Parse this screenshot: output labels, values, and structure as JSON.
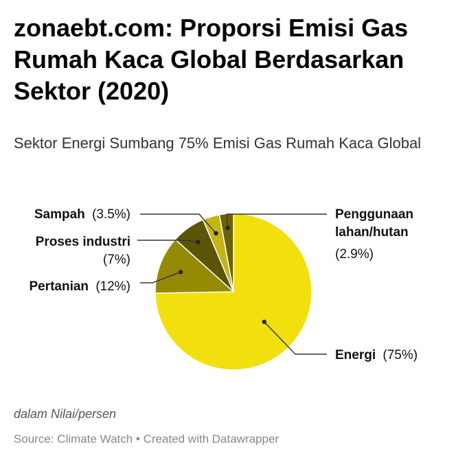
{
  "title": "zonaebt.com: Proporsi Emisi Gas Rumah Kaca Global Berdasarkan Sektor (2020)",
  "subtitle": "Sektor Energi Sumbang 75% Emisi Gas Rumah Kaca Global",
  "note": "dalam Nilai/persen",
  "source": "Source: Climate Watch • Created with Datawrapper",
  "chart_data": {
    "type": "pie",
    "unit": "%",
    "slices": [
      {
        "name": "Energi",
        "value": 75,
        "value_label": "(75%)",
        "color": "#f2df0e"
      },
      {
        "name": "Pertanian",
        "value": 12,
        "value_label": "(12%)",
        "color": "#958a04"
      },
      {
        "name": "Proses industri",
        "value": 7,
        "value_label": "(7%)",
        "color": "#5c5406"
      },
      {
        "name": "Sampah",
        "value": 3.5,
        "value_label": "(3.5%)",
        "color": "#c5b514"
      },
      {
        "name": "Penggunaan lahan/hutan",
        "value": 2.9,
        "value_label": "(2.9%)",
        "color": "#6b6206"
      }
    ]
  }
}
